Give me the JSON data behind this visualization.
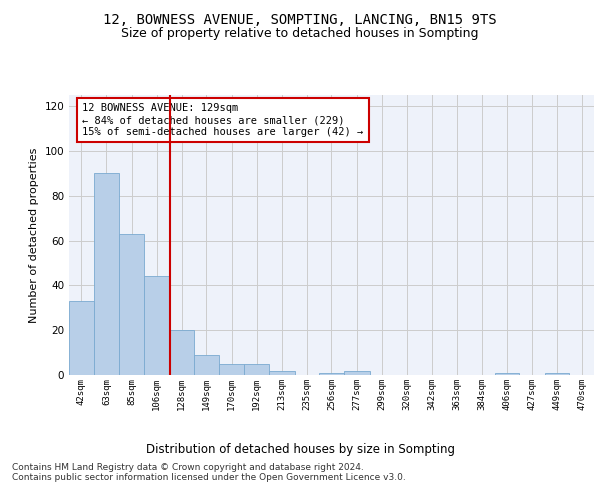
{
  "title": "12, BOWNESS AVENUE, SOMPTING, LANCING, BN15 9TS",
  "subtitle": "Size of property relative to detached houses in Sompting",
  "xlabel": "Distribution of detached houses by size in Sompting",
  "ylabel": "Number of detached properties",
  "bar_values": [
    33,
    90,
    63,
    44,
    20,
    9,
    5,
    5,
    2,
    0,
    1,
    2,
    0,
    0,
    0,
    0,
    0,
    1,
    0,
    1,
    0
  ],
  "bin_labels": [
    "42sqm",
    "63sqm",
    "85sqm",
    "106sqm",
    "128sqm",
    "149sqm",
    "170sqm",
    "192sqm",
    "213sqm",
    "235sqm",
    "256sqm",
    "277sqm",
    "299sqm",
    "320sqm",
    "342sqm",
    "363sqm",
    "384sqm",
    "406sqm",
    "427sqm",
    "449sqm",
    "470sqm"
  ],
  "bin_edges": [
    42,
    63,
    85,
    106,
    128,
    149,
    170,
    192,
    213,
    235,
    256,
    277,
    299,
    320,
    342,
    363,
    384,
    406,
    427,
    449,
    470,
    491
  ],
  "bar_color": "#b8cfe8",
  "bar_edge_color": "#7aaad0",
  "vline_x": 128,
  "vline_color": "#cc0000",
  "annotation_box_text": "12 BOWNESS AVENUE: 129sqm\n← 84% of detached houses are smaller (229)\n15% of semi-detached houses are larger (42) →",
  "annotation_box_color": "#cc0000",
  "ylim": [
    0,
    125
  ],
  "yticks": [
    0,
    20,
    40,
    60,
    80,
    100,
    120
  ],
  "grid_color": "#cccccc",
  "background_color": "#eef2fa",
  "footer_text": "Contains HM Land Registry data © Crown copyright and database right 2024.\nContains public sector information licensed under the Open Government Licence v3.0.",
  "title_fontsize": 10,
  "subtitle_fontsize": 9,
  "xlabel_fontsize": 8.5,
  "ylabel_fontsize": 8,
  "annotation_fontsize": 7.5,
  "footer_fontsize": 6.5
}
